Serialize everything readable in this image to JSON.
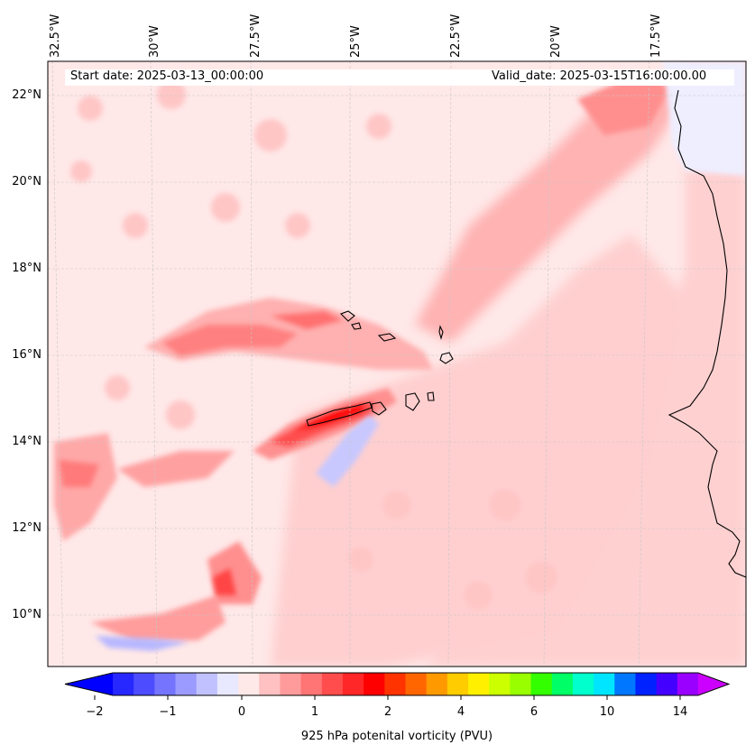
{
  "map": {
    "start_date": "Start date: 2025-03-13_00:00:00",
    "valid_date": "Valid_date: 2025-03-15T16:00:00.00",
    "lon_labels": [
      "32.5°W",
      "30°W",
      "27.5°W",
      "25°W",
      "22.5°W",
      "20°W",
      "17.5°W"
    ],
    "lat_labels": [
      "22°N",
      "20°N",
      "18°N",
      "16°N",
      "14°N",
      "12°N",
      "10°N"
    ],
    "features": [
      "Cape Verde islands",
      "West African coastline"
    ]
  },
  "colorbar": {
    "label": "925 hPa potenital vorticity (PVU)",
    "ticks": [
      "−2",
      "−1",
      "0",
      "1",
      "2",
      "4",
      "6",
      "10",
      "14"
    ],
    "colors": [
      "#0000ff",
      "#2727ff",
      "#4d4dff",
      "#7474ff",
      "#9b9bff",
      "#c1c1ff",
      "#e8e8ff",
      "#ffe8e8",
      "#ffc1c1",
      "#ff9b9b",
      "#ff7474",
      "#ff4d4d",
      "#ff2727",
      "#ff0000",
      "#ff3300",
      "#ff6600",
      "#ff9900",
      "#ffcc00",
      "#fff000",
      "#ccff00",
      "#99ff00",
      "#33ff00",
      "#00ff66",
      "#00ffcc",
      "#00e5ff",
      "#0077ff",
      "#0022ff",
      "#4400ff",
      "#9900ff",
      "#cc00ff"
    ]
  }
}
